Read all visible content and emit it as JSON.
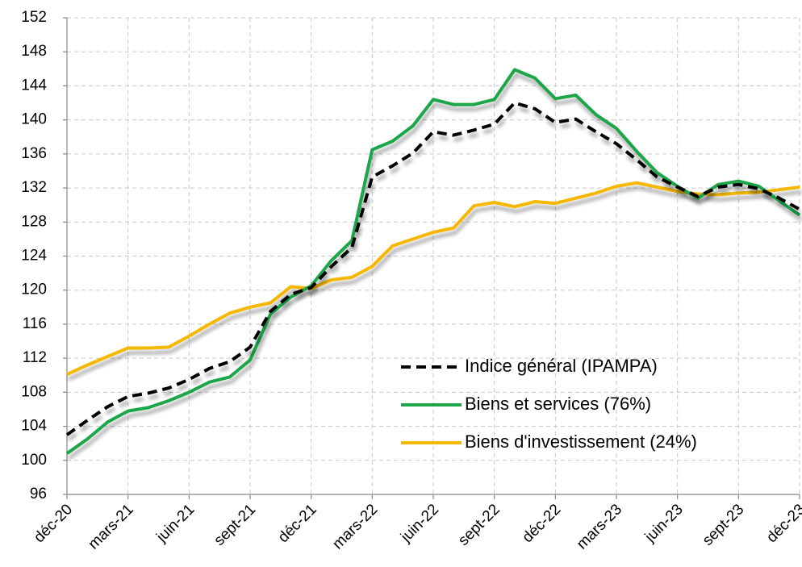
{
  "chart_data": {
    "type": "line",
    "categories": [
      "déc-20",
      null,
      null,
      "mars-21",
      null,
      null,
      "juin-21",
      null,
      null,
      "sept-21",
      null,
      null,
      "déc-21",
      null,
      null,
      "mars-22",
      null,
      null,
      "juin-22",
      null,
      null,
      "sept-22",
      null,
      null,
      "déc-22",
      null,
      null,
      "mars-23",
      null,
      null,
      "juin-23",
      null,
      null,
      "sept-23",
      null,
      null,
      "déc-23"
    ],
    "series": [
      {
        "name": "Indice général (IPAMPA)",
        "color": "#000000",
        "dashed": true,
        "values": [
          103,
          104.7,
          106.3,
          107.5,
          107.9,
          108.5,
          109.5,
          110.8,
          111.6,
          113.3,
          117.5,
          119.5,
          120.3,
          122.8,
          125,
          133.3,
          134.6,
          136.1,
          138.6,
          138.2,
          138.8,
          139.5,
          142,
          141.3,
          139.7,
          140.1,
          138.6,
          137.2,
          135.3,
          133.3,
          132.1,
          131,
          132.1,
          132.4,
          131.9,
          130.8,
          129.5
        ]
      },
      {
        "name": "Biens et services (76%)",
        "color": "#1fa64a",
        "dashed": false,
        "values": [
          100.8,
          102.5,
          104.5,
          105.8,
          106.2,
          107,
          108,
          109.2,
          109.8,
          111.8,
          117.2,
          119.2,
          120.5,
          123.5,
          125.8,
          136.5,
          137.5,
          139.3,
          142.4,
          141.8,
          141.8,
          142.4,
          145.9,
          144.9,
          142.5,
          142.9,
          140.6,
          139,
          136.3,
          133.8,
          132.2,
          130.8,
          132.4,
          132.8,
          132.2,
          130.5,
          128.8
        ]
      },
      {
        "name": "Biens d'investissement (24%)",
        "color": "#f5b800",
        "dashed": false,
        "values": [
          110.1,
          111.2,
          112.2,
          113.2,
          113.2,
          113.3,
          114.6,
          116,
          117.3,
          118,
          118.5,
          120.4,
          120.2,
          121.2,
          121.5,
          122.8,
          125.2,
          126,
          126.8,
          127.3,
          129.9,
          130.3,
          129.8,
          130.4,
          130.2,
          130.8,
          131.4,
          132.2,
          132.6,
          132.1,
          131.6,
          131.3,
          131.2,
          131.4,
          131.5,
          131.8,
          132.1
        ]
      }
    ],
    "ylim": [
      96,
      152
    ],
    "yticks": [
      96,
      100,
      104,
      108,
      112,
      116,
      120,
      124,
      128,
      132,
      136,
      140,
      144,
      148,
      152
    ],
    "grid": true
  }
}
